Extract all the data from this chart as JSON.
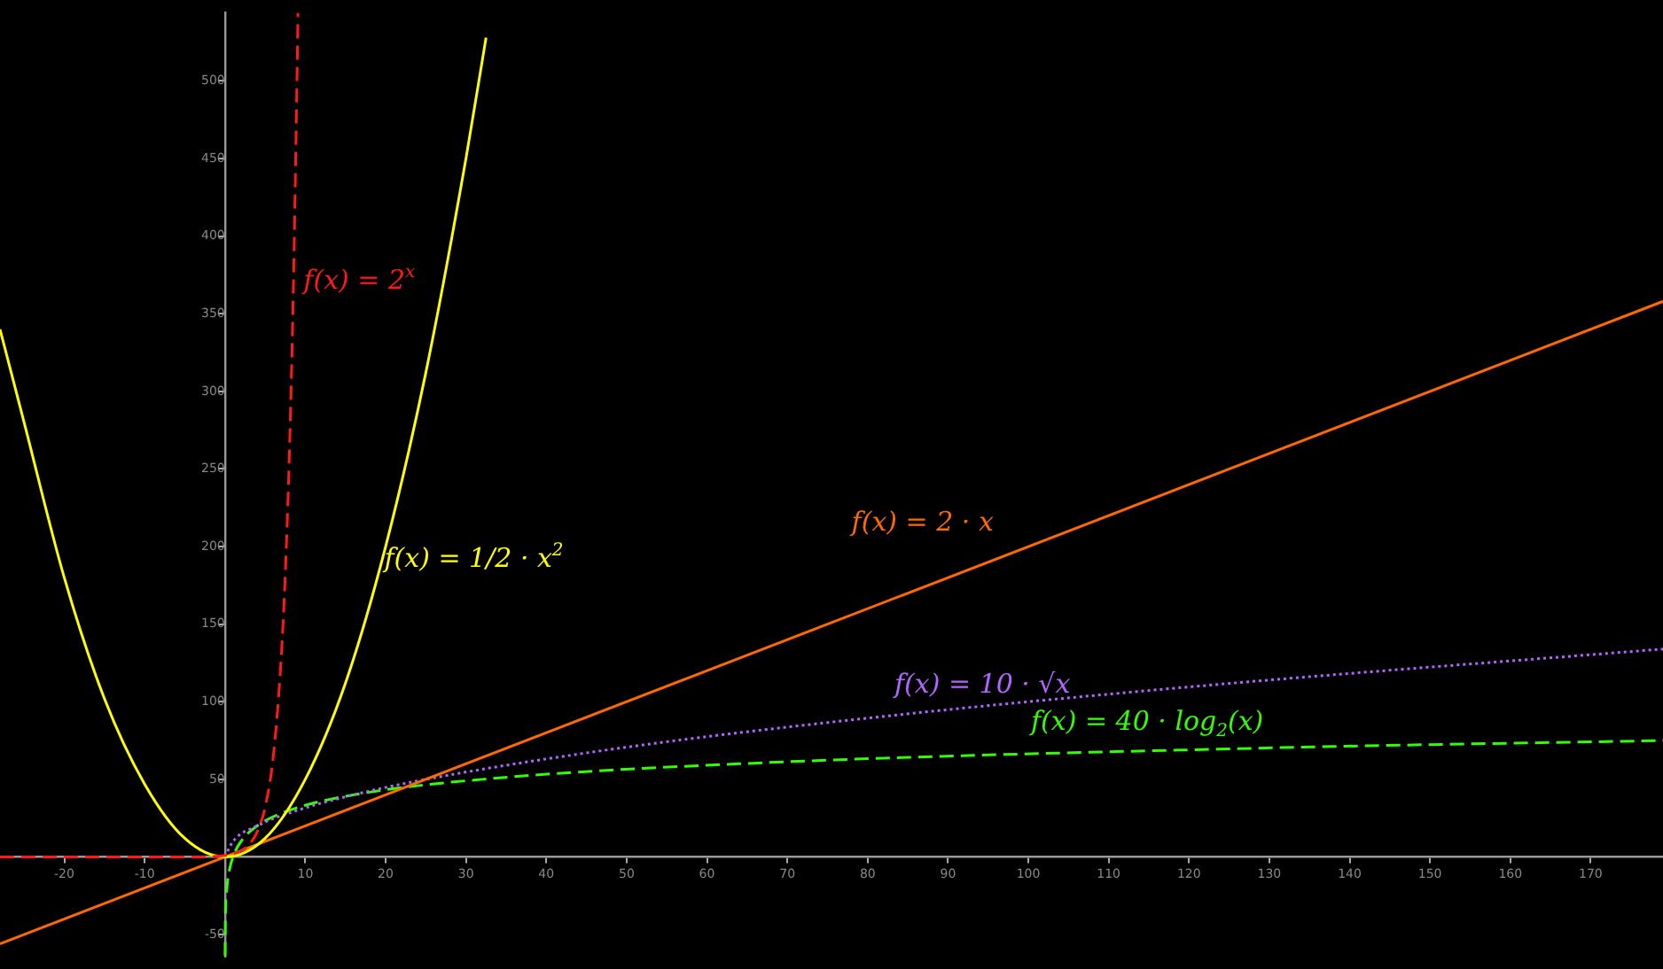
{
  "chart_data": {
    "type": "line",
    "xlim": [
      -28,
      179
    ],
    "ylim": [
      -64,
      544
    ],
    "xticks": [
      -20,
      -10,
      10,
      20,
      30,
      40,
      50,
      60,
      70,
      80,
      90,
      100,
      110,
      120,
      130,
      140,
      150,
      160,
      170
    ],
    "yticks": [
      -50,
      50,
      100,
      150,
      200,
      250,
      300,
      350,
      400,
      450,
      500
    ],
    "grid": false,
    "legend": false,
    "marker": "none",
    "series": [
      {
        "color": "#ff1a1a",
        "line_style": "dashed",
        "x": [
          -28,
          -20,
          -10,
          -5,
          0,
          1,
          2,
          3,
          4,
          5,
          6,
          7,
          7.5,
          8,
          8.5,
          9,
          9.09
        ],
        "values": [
          0,
          0,
          0,
          0,
          1,
          2,
          4,
          8,
          16,
          32,
          64,
          128,
          181,
          256,
          362,
          512,
          544
        ]
      },
      {
        "color": "#ffff00",
        "line_style": "solid",
        "x": [
          -28,
          -25,
          -20,
          -15,
          -10,
          -5,
          0,
          5,
          10,
          15,
          20,
          25,
          30,
          32.5
        ],
        "values": [
          340,
          280,
          180,
          102,
          47,
          12,
          0,
          12,
          50,
          112,
          200,
          312,
          450,
          528
        ]
      },
      {
        "color": "#ff6a00",
        "line_style": "solid",
        "x": [
          -28,
          179
        ],
        "values": [
          -56,
          358
        ]
      },
      {
        "color": "#b266ff",
        "line_style": "dotted",
        "x": [
          0,
          1,
          4,
          9,
          16,
          25,
          49,
          81,
          121,
          179
        ],
        "values": [
          0,
          10,
          20,
          30,
          40,
          50,
          70,
          90,
          110,
          134
        ]
      },
      {
        "color": "#33ff00",
        "line_style": "dashed",
        "x": [
          0.012,
          0.05,
          0.25,
          0.5,
          1,
          2,
          4,
          8,
          16,
          32,
          64,
          128,
          179
        ],
        "values": [
          -64,
          -43,
          -20,
          -10,
          0,
          10,
          20,
          30,
          40,
          50,
          60,
          70,
          75
        ]
      }
    ],
    "annotations": [
      {
        "text": "f(x) = 2$^{x}$",
        "x": 8.45,
        "y": 350
      },
      {
        "text": "f(x) = 1/2 · x$^{2}$",
        "x": 18.5,
        "y": 171
      },
      {
        "text": "f(x) = 2 · x",
        "x": 97,
        "y": 194
      },
      {
        "text": "f(x) = 10 · √x",
        "x": 82,
        "y": 90
      },
      {
        "text": "f(x) = 40 · log$_{2}$(x)",
        "x": 99,
        "y": 66
      }
    ]
  }
}
